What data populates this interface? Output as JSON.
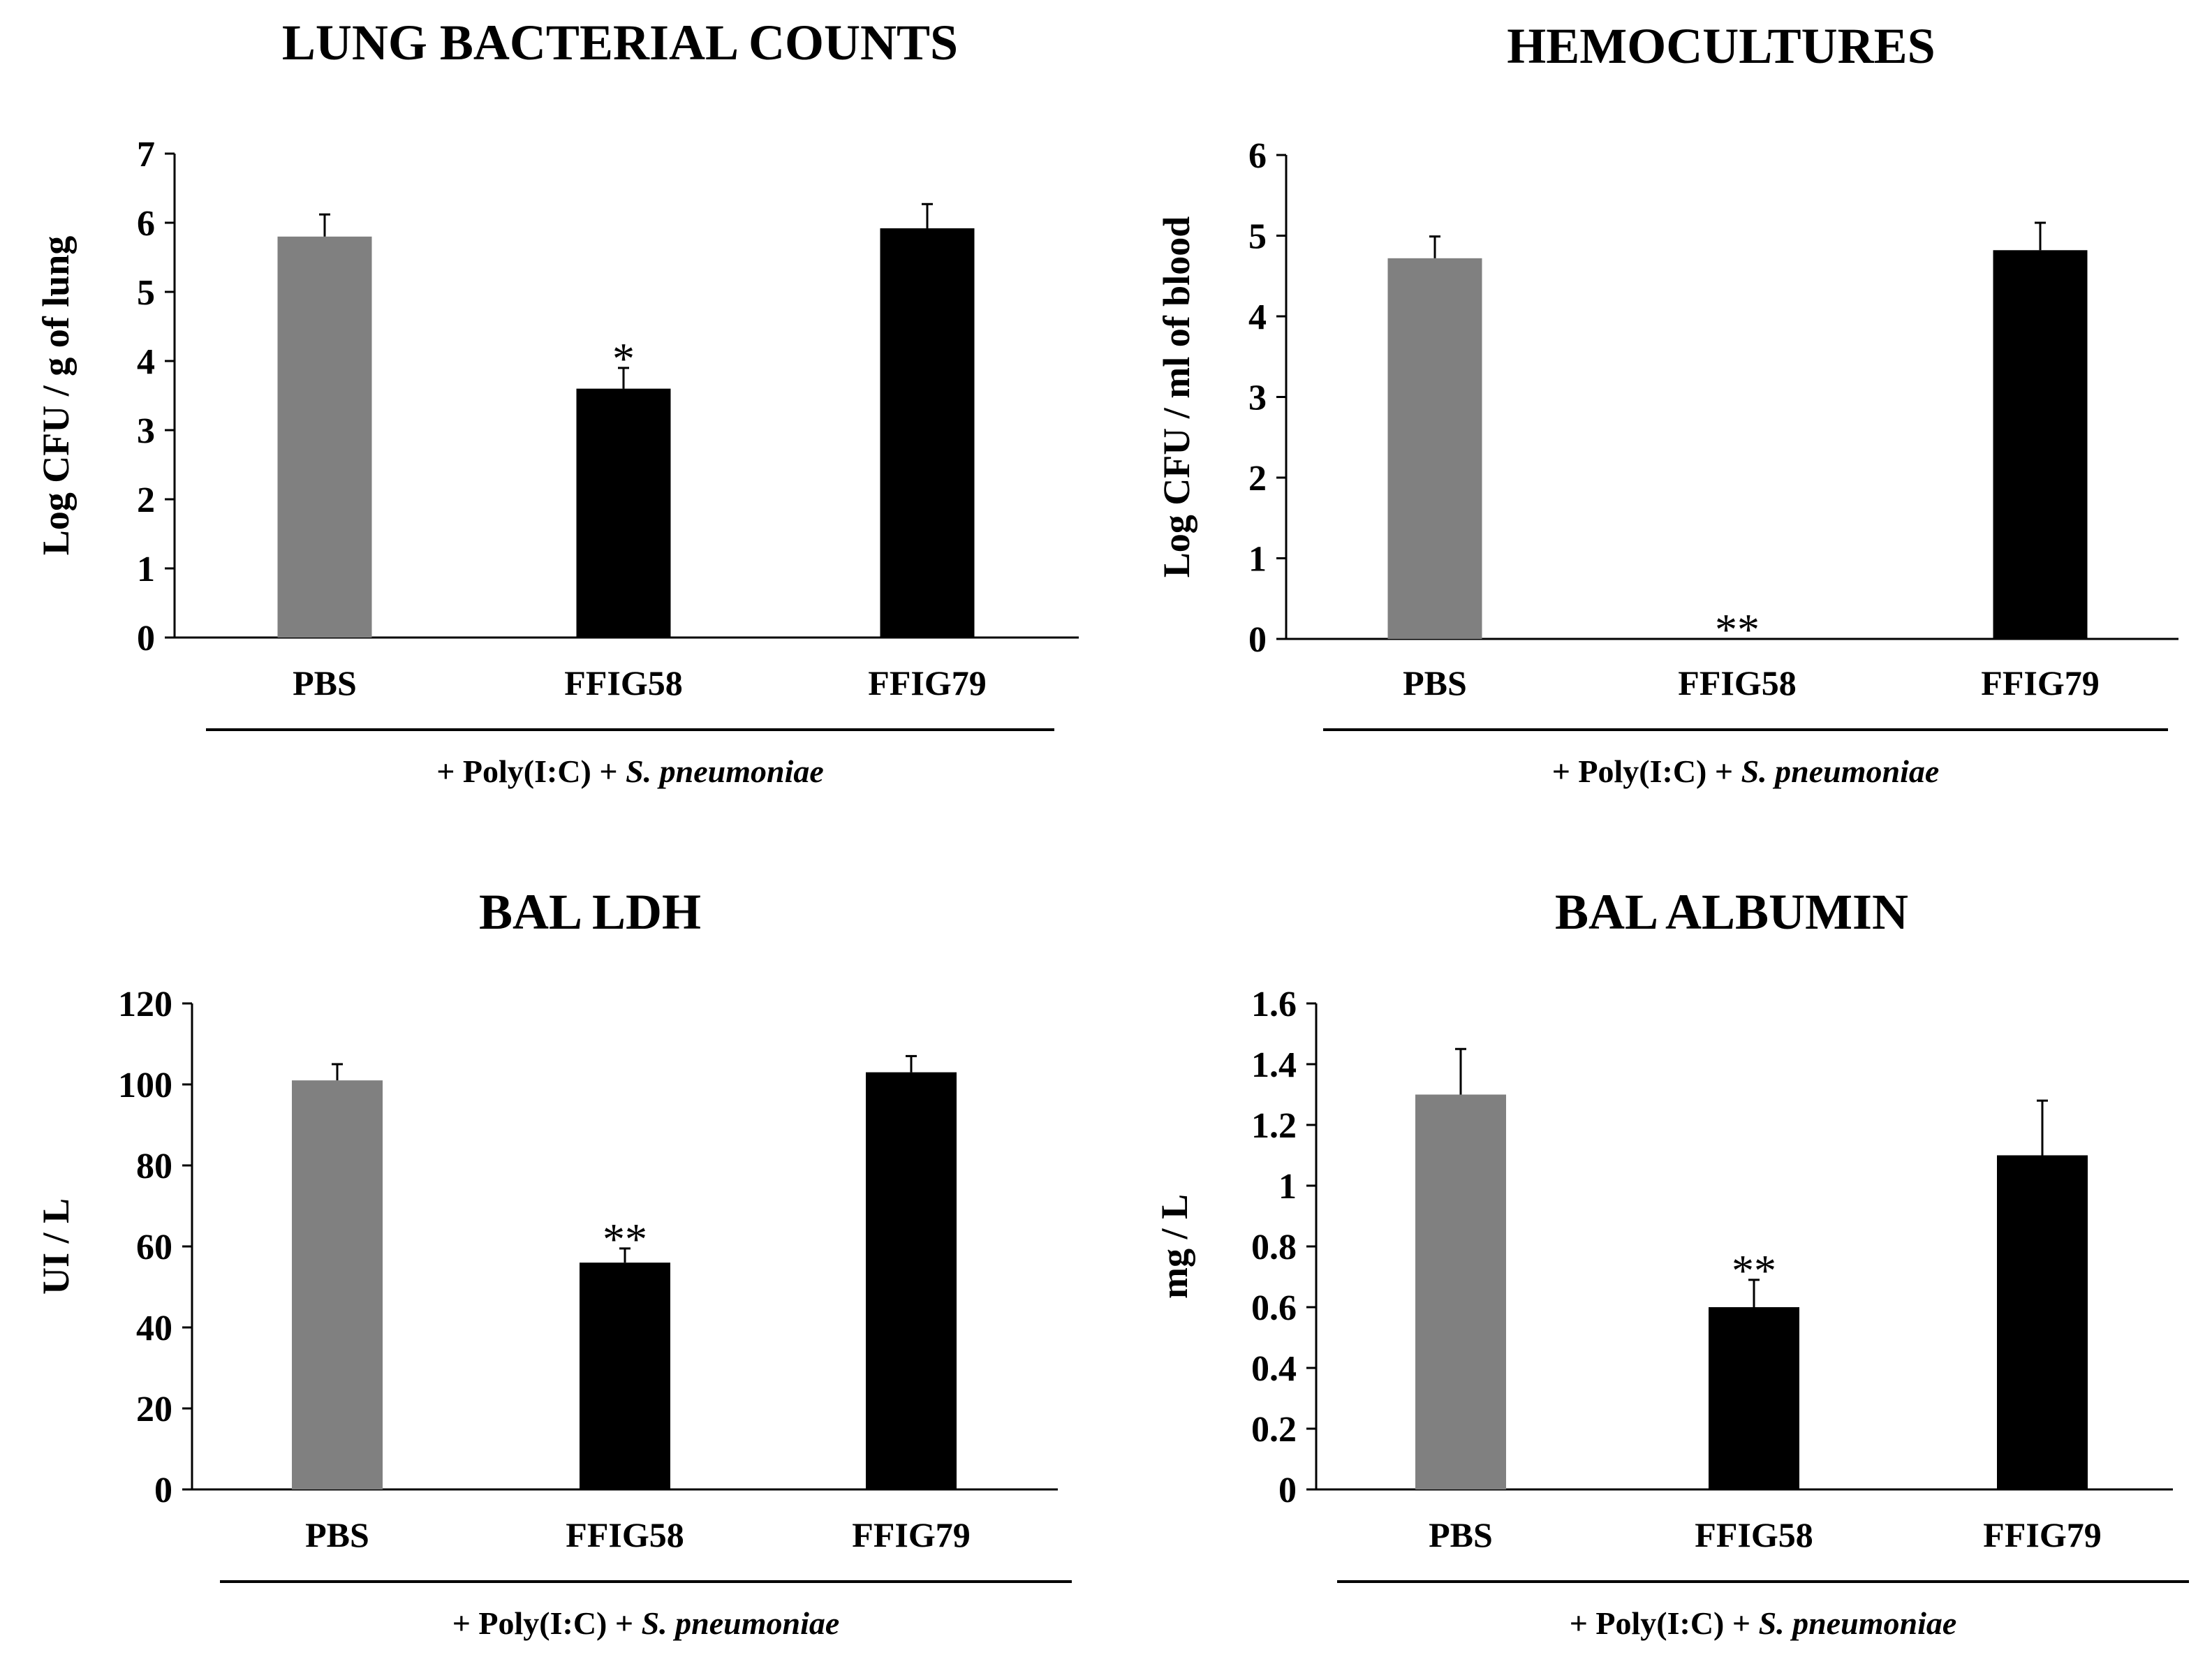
{
  "colors": {
    "PBS": "#808080",
    "FFIG58": "#000000",
    "FFIG79": "#000000",
    "axis": "#000000"
  },
  "chart_data": [
    {
      "type": "bar",
      "title": "LUNG BACTERIAL COUNTS",
      "ylabel": "Log CFU / g of lung",
      "categories": [
        "PBS",
        "FFIG58",
        "FFIG79"
      ],
      "values": [
        5.8,
        3.6,
        5.92
      ],
      "errors": [
        0.32,
        0.3,
        0.35
      ],
      "significance": [
        "",
        "*",
        ""
      ],
      "ylim": [
        0,
        7
      ],
      "yticks": [
        "0",
        "1",
        "2",
        "3",
        "4",
        "5",
        "6",
        "7"
      ],
      "treatment": {
        "prefix": "+ Poly(I:C) + ",
        "italic": "S. pneumoniae"
      }
    },
    {
      "type": "bar",
      "title": "HEMOCULTURES",
      "ylabel": "Log CFU / ml of blood",
      "categories": [
        "PBS",
        "FFIG58",
        "FFIG79"
      ],
      "values": [
        4.72,
        0,
        4.82
      ],
      "errors": [
        0.27,
        0,
        0.34
      ],
      "significance": [
        "",
        "**",
        ""
      ],
      "ylim": [
        0,
        6
      ],
      "yticks": [
        "0",
        "1",
        "2",
        "3",
        "4",
        "5",
        "6"
      ],
      "treatment": {
        "prefix": "+ Poly(I:C) + ",
        "italic": "S. pneumoniae"
      }
    },
    {
      "type": "bar",
      "title": "BAL LDH",
      "ylabel": "UI / L",
      "categories": [
        "PBS",
        "FFIG58",
        "FFIG79"
      ],
      "values": [
        101,
        56,
        103
      ],
      "errors": [
        4,
        3.5,
        4
      ],
      "significance": [
        "",
        "**",
        ""
      ],
      "ylim": [
        0,
        120
      ],
      "yticks": [
        "0",
        "20",
        "40",
        "60",
        "80",
        "100",
        "120"
      ],
      "treatment": {
        "prefix": "+ Poly(I:C) + ",
        "italic": "S. pneumoniae"
      }
    },
    {
      "type": "bar",
      "title": "BAL ALBUMIN",
      "ylabel": "mg / L",
      "categories": [
        "PBS",
        "FFIG58",
        "FFIG79"
      ],
      "values": [
        1.3,
        0.6,
        1.1
      ],
      "errors": [
        0.15,
        0.09,
        0.18
      ],
      "significance": [
        "",
        "**",
        ""
      ],
      "ylim": [
        0,
        1.6
      ],
      "yticks": [
        "0",
        "0.2",
        "0.4",
        "0.6",
        "0.8",
        "1",
        "1.2",
        "1.4",
        "1.6"
      ],
      "treatment": {
        "prefix": "+ Poly(I:C) + ",
        "italic": "S. pneumoniae"
      }
    }
  ]
}
